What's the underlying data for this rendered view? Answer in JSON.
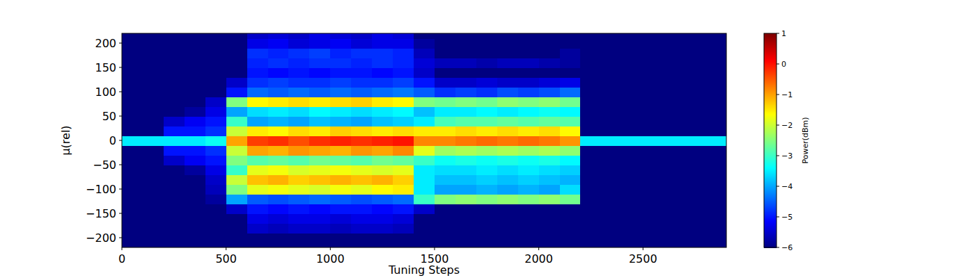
{
  "chart_data": {
    "type": "heatmap",
    "x_label": "Tuning Steps",
    "y_label": "μ(rel)",
    "colorbar_label": "Power(dBm)",
    "xlim": [
      0,
      2900
    ],
    "ylim": [
      -220,
      220
    ],
    "xticks": [
      0,
      500,
      1000,
      1500,
      2000,
      2500
    ],
    "yticks": [
      {
        "value": -200,
        "label": "−200"
      },
      {
        "value": -150,
        "label": "−150"
      },
      {
        "value": -100,
        "label": "−100"
      },
      {
        "value": -50,
        "label": "−50"
      },
      0,
      50,
      100,
      150,
      200
    ],
    "zlim": [
      -6,
      1
    ],
    "zticks": [
      {
        "value": -6,
        "label": "−6"
      },
      {
        "value": -5,
        "label": "−5"
      },
      {
        "value": -4,
        "label": "−4"
      },
      {
        "value": -3,
        "label": "−3"
      },
      {
        "value": -2,
        "label": "−2"
      },
      {
        "value": -1,
        "label": "−1"
      },
      0,
      1
    ],
    "x_bins": [
      0,
      100,
      200,
      300,
      400,
      500,
      600,
      700,
      800,
      900,
      1000,
      1100,
      1200,
      1300,
      1400,
      1500,
      1600,
      1700,
      1800,
      1900,
      2000,
      2100,
      2200,
      2300,
      2400,
      2500,
      2600,
      2700,
      2800,
      2900
    ],
    "y_bins": [
      -220,
      -210,
      -190,
      -170,
      -150,
      -130,
      -110,
      -90,
      -70,
      -50,
      -30,
      -10,
      10,
      30,
      50,
      70,
      90,
      110,
      130,
      150,
      170,
      190,
      210,
      220
    ],
    "z": [
      [
        -6,
        -6,
        -6,
        -6,
        -6,
        -6,
        -6,
        -6,
        -6,
        -6,
        -6,
        -6,
        -6,
        -6,
        -6,
        -6,
        -6,
        -6,
        -6,
        -6,
        -6,
        -6,
        -6,
        -6,
        -6,
        -6,
        -6,
        -6,
        -6
      ],
      [
        -6,
        -6,
        -6,
        -6,
        -6,
        -6,
        -6,
        -6,
        -6,
        -6,
        -6,
        -6,
        -6,
        -6,
        -6,
        -6,
        -6,
        -6,
        -6,
        -6,
        -6,
        -6,
        -6,
        -6,
        -6,
        -6,
        -6,
        -6,
        -6
      ],
      [
        -6,
        -6,
        -6,
        -6,
        -6,
        -6,
        -5.5,
        -5.6,
        -5.5,
        -5.5,
        -5.6,
        -5.5,
        -5.5,
        -5.6,
        -6,
        -6,
        -6,
        -6,
        -6,
        -6,
        -6,
        -6,
        -6,
        -6,
        -6,
        -6,
        -6,
        -6,
        -6
      ],
      [
        -6,
        -6,
        -6,
        -6,
        -6,
        -6,
        -5.3,
        -5.4,
        -5.3,
        -5.3,
        -5.4,
        -5.3,
        -5.3,
        -5.4,
        -6,
        -6,
        -6,
        -6,
        -6,
        -6,
        -6,
        -6,
        -6,
        -6,
        -6,
        -6,
        -6,
        -6,
        -6
      ],
      [
        -6,
        -6,
        -6,
        -6,
        -6,
        -5.5,
        -5,
        -5.1,
        -5,
        -5.1,
        -5,
        -5,
        -5.1,
        -5,
        -5.5,
        -6,
        -6,
        -6,
        -6,
        -6,
        -6,
        -6,
        -6,
        -6,
        -6,
        -6,
        -6,
        -6,
        -6
      ],
      [
        -6,
        -6,
        -6,
        -6,
        -5.8,
        -4,
        -4.5,
        -4.6,
        -4.5,
        -4.4,
        -4.5,
        -4.6,
        -4.5,
        -4.4,
        -3,
        -2.5,
        -2.4,
        -2.5,
        -2.4,
        -2.5,
        -2.4,
        -2.6,
        -6,
        -6,
        -6,
        -6,
        -6,
        -6,
        -6
      ],
      [
        -6,
        -6,
        -6,
        -6,
        -5.6,
        -2.5,
        -1.8,
        -1.7,
        -1.8,
        -1.9,
        -1.7,
        -1.8,
        -1.6,
        -1.5,
        -3.5,
        -4,
        -4,
        -3.9,
        -4,
        -3.9,
        -4,
        -3.6,
        -6,
        -6,
        -6,
        -6,
        -6,
        -6,
        -6
      ],
      [
        -6,
        -6,
        -6,
        -6,
        -5.5,
        -2,
        -1.2,
        -1.1,
        -1.3,
        -1.2,
        -1.1,
        -1.2,
        -1.1,
        -1.3,
        -3.5,
        -3.8,
        -3.8,
        -3.7,
        -3.8,
        -3.7,
        -3.8,
        -3.9,
        -6,
        -6,
        -6,
        -6,
        -6,
        -6,
        -6
      ],
      [
        -6,
        -6,
        -6,
        -5.8,
        -5.3,
        -3,
        -1.8,
        -1.7,
        -1.9,
        -1.8,
        -1.7,
        -1.8,
        -1.9,
        -1.8,
        -3.5,
        -3.6,
        -3.6,
        -3.5,
        -3.6,
        -3.5,
        -3.6,
        -3.7,
        -6,
        -6,
        -6,
        -6,
        -6,
        -6,
        -6
      ],
      [
        -6,
        -6,
        -5.5,
        -5.2,
        -5,
        -2.5,
        -2.8,
        -2.7,
        -2.8,
        -2.6,
        -2.7,
        -2.8,
        -2.6,
        -2.7,
        -3,
        -3.3,
        -3.2,
        -3.3,
        -3.2,
        -3.3,
        -3.2,
        -3.4,
        -6,
        -6,
        -6,
        -6,
        -6,
        -6,
        -6
      ],
      [
        -6,
        -6,
        -5,
        -5,
        -4.8,
        -2,
        -1,
        -1.1,
        -0.9,
        -1,
        -1.1,
        -0.9,
        -1,
        -0.8,
        -1.8,
        -2.3,
        -2.2,
        -2.3,
        -2.2,
        -2.3,
        -2.2,
        -2.4,
        -6,
        -6,
        -6,
        -6,
        -6,
        -6,
        -6
      ],
      [
        -3.5,
        -3.5,
        -3.5,
        -3.5,
        -3.3,
        -1,
        -0.3,
        -0.2,
        -0.4,
        -0.2,
        -0.1,
        -0.2,
        -0.1,
        0,
        -0.8,
        -0.8,
        -0.7,
        -0.6,
        -0.7,
        -0.6,
        -0.7,
        -0.9,
        -3.5,
        -3.5,
        -3.5,
        -3.5,
        -3.5,
        -3.5,
        -3.5
      ],
      [
        -6,
        -6,
        -5,
        -5,
        -4.8,
        -2,
        -1.5,
        -1.6,
        -1.4,
        -1.5,
        -1.3,
        -1.4,
        -1.5,
        -1.4,
        -1.5,
        -1.5,
        -1.4,
        -1.5,
        -1.4,
        -1.5,
        -1.4,
        -1.6,
        -6,
        -6,
        -6,
        -6,
        -6,
        -6,
        -6
      ],
      [
        -6,
        -6,
        -5.5,
        -5.2,
        -5,
        -3,
        -4,
        -3.9,
        -4,
        -3.8,
        -3.9,
        -4,
        -3.8,
        -3.7,
        -3.5,
        -2.9,
        -2.8,
        -2.8,
        -2.7,
        -2.8,
        -2.7,
        -2.8,
        -6,
        -6,
        -6,
        -6,
        -6,
        -6,
        -6
      ],
      [
        -6,
        -6,
        -6,
        -5.8,
        -5.3,
        -4,
        -3.6,
        -3.5,
        -3.6,
        -3.4,
        -3.5,
        -3.6,
        -3.5,
        -3.4,
        -3.8,
        -3.5,
        -3.5,
        -3.4,
        -3.5,
        -3.4,
        -3.3,
        -3.4,
        -6,
        -6,
        -6,
        -6,
        -6,
        -6,
        -6
      ],
      [
        -6,
        -6,
        -6,
        -6,
        -5.5,
        -2.5,
        -1.6,
        -1.5,
        -1.4,
        -1.5,
        -1.4,
        -1.3,
        -1.5,
        -1.6,
        -2.5,
        -2.6,
        -2.5,
        -2.6,
        -2.4,
        -2.5,
        -2.4,
        -2.6,
        -6,
        -6,
        -6,
        -6,
        -6,
        -6,
        -6
      ],
      [
        -6,
        -6,
        -6,
        -6,
        -6,
        -5,
        -4.4,
        -4.5,
        -4.4,
        -4.5,
        -4.4,
        -4.5,
        -4.4,
        -4.3,
        -4.5,
        -4.8,
        -4.7,
        -4.8,
        -4.6,
        -4.7,
        -4.6,
        -4.4,
        -6,
        -6,
        -6,
        -6,
        -6,
        -6,
        -6
      ],
      [
        -6,
        -6,
        -6,
        -6,
        -6,
        -5.5,
        -4.8,
        -4.7,
        -4.8,
        -4.8,
        -4.7,
        -4.8,
        -4.8,
        -4.7,
        -5,
        -5.5,
        -5.5,
        -5.4,
        -5.5,
        -5.5,
        -5.4,
        -5.3,
        -6,
        -6,
        -6,
        -6,
        -6,
        -6,
        -6
      ],
      [
        -6,
        -6,
        -6,
        -6,
        -6,
        -6,
        -5,
        -5.1,
        -5,
        -5.1,
        -5,
        -5,
        -5.1,
        -5,
        -5.5,
        -6,
        -6,
        -6,
        -6,
        -6,
        -6,
        -6,
        -6,
        -6,
        -6,
        -6,
        -6,
        -6,
        -6
      ],
      [
        -6,
        -6,
        -6,
        -6,
        -6,
        -6,
        -4.9,
        -4.8,
        -4.9,
        -4.8,
        -4.8,
        -4.9,
        -4.8,
        -4.9,
        -5.4,
        -5.6,
        -5.6,
        -5.7,
        -5.6,
        -5.6,
        -5.7,
        -5.8,
        -6,
        -6,
        -6,
        -6,
        -6,
        -6,
        -6
      ],
      [
        -6,
        -6,
        -6,
        -6,
        -6,
        -6,
        -4.8,
        -4.9,
        -4.8,
        -4.7,
        -4.9,
        -4.8,
        -4.8,
        -4.9,
        -5.6,
        -6,
        -6,
        -6,
        -6,
        -6,
        -6,
        -5.8,
        -6,
        -6,
        -6,
        -6,
        -6,
        -6,
        -6
      ],
      [
        -6,
        -6,
        -6,
        -6,
        -6,
        -6,
        -5.3,
        -5.2,
        -5.4,
        -5.3,
        -5.2,
        -5.4,
        -5.3,
        -5.3,
        -5.8,
        -6,
        -6,
        -6,
        -6,
        -6,
        -6,
        -6,
        -6,
        -6,
        -6,
        -6,
        -6,
        -6,
        -6
      ],
      [
        -6,
        -6,
        -6,
        -6,
        -6,
        -6,
        -5.5,
        -5.4,
        -5.5,
        -5.3,
        -5.4,
        -5.5,
        -5.3,
        -5.4,
        -6,
        -6,
        -6,
        -6,
        -6,
        -6,
        -6,
        -6,
        -6,
        -6,
        -6,
        -6,
        -6,
        -6,
        -6
      ]
    ]
  }
}
